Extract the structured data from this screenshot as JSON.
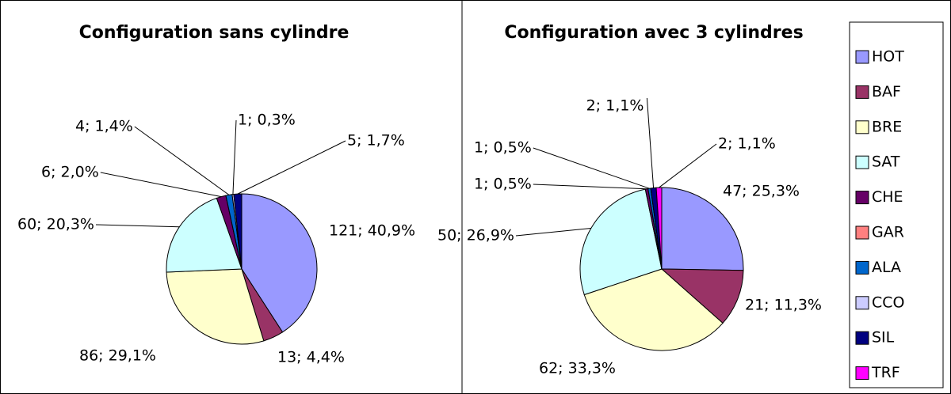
{
  "chart_data": [
    {
      "type": "pie",
      "title": "Configuration sans cylindre",
      "categories": [
        "HOT",
        "BAF",
        "BRE",
        "SAT",
        "CHE",
        "GAR",
        "ALA",
        "CCO",
        "SIL",
        "TRF"
      ],
      "values": [
        121,
        13,
        86,
        60,
        6,
        0,
        4,
        1,
        5,
        0
      ],
      "value_labels": [
        "121; 40,9%",
        "13; 4,4%",
        "86; 29,1%",
        "60; 20,3%",
        "6; 2,0%",
        null,
        "4; 1,4%",
        "1; 0,3%",
        "5; 1,7%",
        null
      ],
      "colors": [
        "#9999ff",
        "#993366",
        "#ffffcc",
        "#ccffff",
        "#660066",
        "#ff8080",
        "#0066cc",
        "#ccccff",
        "#000080",
        "#ff00ff"
      ],
      "legend": false
    },
    {
      "type": "pie",
      "title": "Configuration avec 3 cylindres",
      "categories": [
        "HOT",
        "BAF",
        "BRE",
        "SAT",
        "CHE",
        "GAR",
        "ALA",
        "CCO",
        "SIL",
        "TRF"
      ],
      "values": [
        47,
        21,
        62,
        50,
        1,
        0,
        1,
        0,
        2,
        2
      ],
      "value_labels": [
        "47; 25,3%",
        "21; 11,3%",
        "62; 33,3%",
        "50; 26,9%",
        "1; 0,5%",
        null,
        "1; 0,5%",
        null,
        "2; 1,1%",
        "2; 1,1%"
      ],
      "colors": [
        "#9999ff",
        "#993366",
        "#ffffcc",
        "#ccffff",
        "#660066",
        "#ff8080",
        "#0066cc",
        "#ccccff",
        "#000080",
        "#ff00ff"
      ],
      "legend": "right"
    }
  ]
}
